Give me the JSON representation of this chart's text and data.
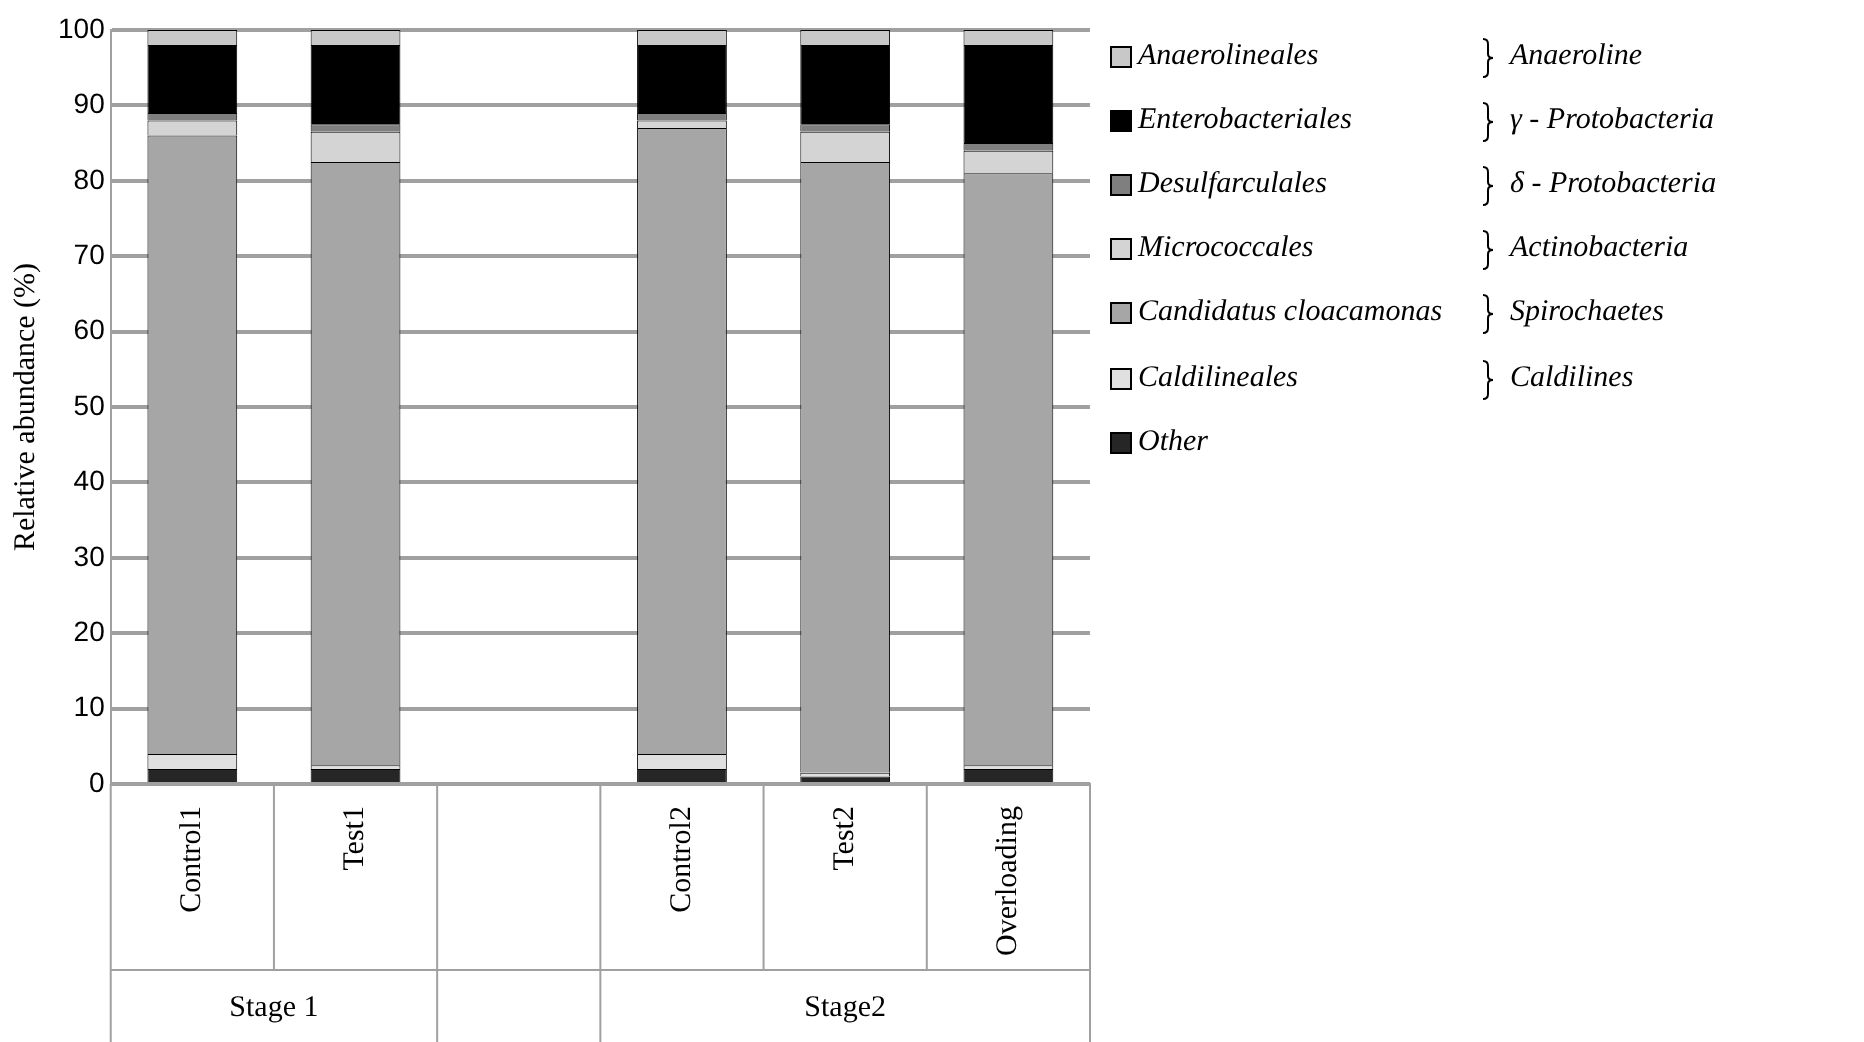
{
  "chart_data": {
    "type": "bar",
    "stacked": true,
    "ylabel": "Relative abundance (%)",
    "categories": [
      "Control1",
      "Test1",
      null,
      "Control2",
      "Test2",
      "Overloading"
    ],
    "series": [
      {
        "name": "Other",
        "color": "#262626",
        "values": [
          2,
          2,
          null,
          2,
          1,
          2
        ]
      },
      {
        "name": "Caldilineales",
        "color": "#e0e0e0",
        "values": [
          2,
          0.5,
          null,
          2,
          0.5,
          0.5
        ]
      },
      {
        "name": "Candidatus cloacamonas",
        "color": "#a6a6a6",
        "values": [
          82,
          80,
          null,
          83,
          81,
          78.5
        ]
      },
      {
        "name": "Micrococcales",
        "color": "#d4d4d4",
        "values": [
          2,
          4,
          null,
          1,
          4,
          3
        ]
      },
      {
        "name": "Desulfarculales",
        "color": "#7f7f7f",
        "values": [
          1,
          1,
          null,
          1,
          1,
          1
        ]
      },
      {
        "name": "Enterobacteriales",
        "color": "#000000",
        "values": [
          9,
          10.5,
          null,
          9,
          10.5,
          13
        ]
      },
      {
        "name": "Anaerolineales",
        "color": "#c8c8c8",
        "values": [
          2,
          2,
          null,
          2,
          2,
          2
        ]
      }
    ],
    "ylim": [
      0,
      100
    ],
    "yticks": [
      0,
      10,
      20,
      30,
      40,
      50,
      60,
      70,
      80,
      90,
      100
    ],
    "grid": "y",
    "legend": "right",
    "annotations": [
      "Anaeroline",
      "γ - Protobacteria",
      "δ - Protobacteria",
      "Actinobacteria",
      "Spirochaetes",
      "Caldilines",
      "Stage 1",
      "Stage2"
    ]
  }
}
